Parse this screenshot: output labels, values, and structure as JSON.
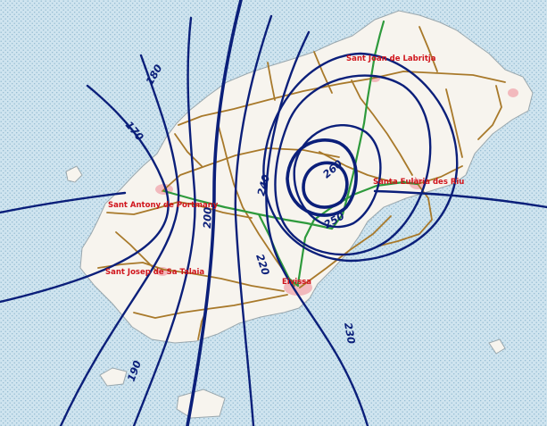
{
  "map": {
    "colors": {
      "sea": "#cfe4ef",
      "sea_dot": "#8fb8cf",
      "land": "#f7f4ee",
      "land_edge": "#9aa7ad",
      "isoline": "#0b1f7a",
      "road": "#a8792a",
      "main_road": "#2e9a3c",
      "town_area": "#f2b9bd",
      "town_label": "#d0151c"
    },
    "towns": [
      {
        "name": "Sant Joan de Labritja"
      },
      {
        "name": "Santa Eulària des Riu"
      },
      {
        "name": "Sant Antony de Portmany"
      },
      {
        "name": "Sant Josep de Sa Talaia"
      },
      {
        "name": "Eivissa"
      }
    ],
    "isolines": [
      {
        "value": "170"
      },
      {
        "value": "180"
      },
      {
        "value": "190"
      },
      {
        "value": "200"
      },
      {
        "value": "220"
      },
      {
        "value": "230"
      },
      {
        "value": "240"
      },
      {
        "value": "250"
      },
      {
        "value": "260"
      }
    ]
  }
}
